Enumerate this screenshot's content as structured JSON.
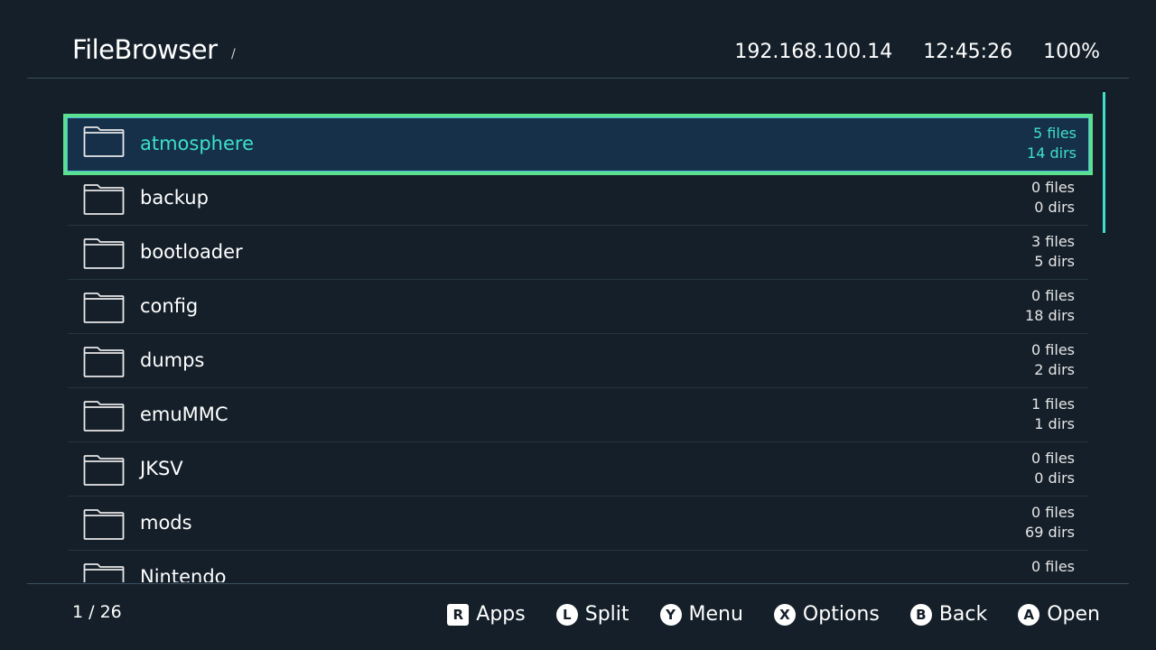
{
  "header": {
    "title": "FileBrowser",
    "path": "/",
    "ip": "192.168.100.14",
    "time": "12:45:26",
    "battery": "100%"
  },
  "colors": {
    "accent": "#3de0c8",
    "highlight_border": "#5be08f",
    "background": "#141f29"
  },
  "entries": [
    {
      "name": "atmosphere",
      "files": "5 files",
      "dirs": "14 dirs",
      "icon": "folder-icon",
      "selected": true
    },
    {
      "name": "backup",
      "files": "0 files",
      "dirs": "0 dirs",
      "icon": "folder-icon"
    },
    {
      "name": "bootloader",
      "files": "3 files",
      "dirs": "5 dirs",
      "icon": "folder-icon"
    },
    {
      "name": "config",
      "files": "0 files",
      "dirs": "18 dirs",
      "icon": "folder-icon"
    },
    {
      "name": "dumps",
      "files": "0 files",
      "dirs": "2 dirs",
      "icon": "folder-icon"
    },
    {
      "name": "emuMMC",
      "files": "1 files",
      "dirs": "1 dirs",
      "icon": "folder-icon"
    },
    {
      "name": "JKSV",
      "files": "0 files",
      "dirs": "0 dirs",
      "icon": "folder-icon"
    },
    {
      "name": "mods",
      "files": "0 files",
      "dirs": "69 dirs",
      "icon": "folder-icon"
    },
    {
      "name": "Nintendo",
      "files": "0 files",
      "icon": "folder-icon"
    }
  ],
  "footer": {
    "pager": "1 / 26",
    "hints": [
      {
        "key": "R",
        "label": "Apps"
      },
      {
        "key": "L",
        "label": "Split"
      },
      {
        "key": "Y",
        "label": "Menu"
      },
      {
        "key": "X",
        "label": "Options"
      },
      {
        "key": "B",
        "label": "Back"
      },
      {
        "key": "A",
        "label": "Open"
      }
    ]
  }
}
